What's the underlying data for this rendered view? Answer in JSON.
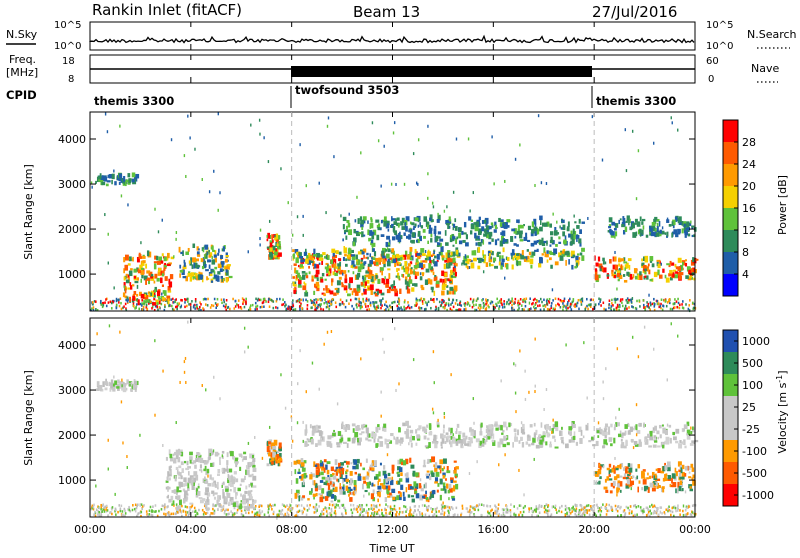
{
  "header": {
    "station": "Rankin Inlet (fitACF)",
    "beam": "Beam 13",
    "date": "27/Jul/2016"
  },
  "nsky_panel": {
    "left_label": "N.Sky",
    "left_ticks": [
      "10^5",
      "10^0"
    ],
    "right_ticks": [
      "10^5",
      "10^0"
    ],
    "right_label": "N.Search"
  },
  "freq_panel": {
    "left_label_line1": "Freq.",
    "left_label_line2": "[MHz]",
    "left_ticks": [
      "18",
      "8"
    ],
    "right_ticks": [
      "60",
      "0"
    ],
    "right_label": "Nave"
  },
  "cpid_panel": {
    "label": "CPID",
    "segments": [
      {
        "name": "themis 3300",
        "start_hour": 0,
        "end_hour": 8
      },
      {
        "name": "twofsound 3503",
        "start_hour": 8,
        "end_hour": 20
      },
      {
        "name": "themis 3300",
        "start_hour": 20,
        "end_hour": 24
      }
    ]
  },
  "chart_data": [
    {
      "type": "heatmap",
      "name": "power",
      "ylabel": "Slant Range [km]",
      "xlabel": "",
      "xlim": [
        0,
        24
      ],
      "ylim": [
        180,
        4600
      ],
      "xticks": [
        0,
        4,
        8,
        12,
        16,
        20,
        24
      ],
      "yticks": [
        1000,
        2000,
        3000,
        4000
      ],
      "colorbar": {
        "label": "Power [dB]",
        "ticks": [
          "28",
          "24",
          "20",
          "16",
          "12",
          "8",
          "4"
        ],
        "colors": [
          "#ff0000",
          "#ff5a00",
          "#ff9a00",
          "#f5d000",
          "#5fc23a",
          "#2e8b5a",
          "#1f5ea8",
          "#0000ff"
        ]
      },
      "echo_regions": [
        {
          "t0": 0.2,
          "t1": 1.8,
          "r0": 2950,
          "r1": 3150,
          "level": "weak"
        },
        {
          "t0": 1.3,
          "t1": 3.2,
          "r0": 300,
          "r1": 1400,
          "level": "strong"
        },
        {
          "t0": 3.5,
          "t1": 5.5,
          "r0": 800,
          "r1": 1600,
          "level": "medium"
        },
        {
          "t0": 7.0,
          "t1": 7.5,
          "r0": 1300,
          "r1": 1800,
          "level": "strong"
        },
        {
          "t0": 8.0,
          "t1": 14.5,
          "r0": 500,
          "r1": 1400,
          "level": "strong"
        },
        {
          "t0": 8.0,
          "t1": 19.5,
          "r0": 1100,
          "r1": 1500,
          "level": "medium"
        },
        {
          "t0": 10.0,
          "t1": 19.5,
          "r0": 1600,
          "r1": 2200,
          "level": "weak"
        },
        {
          "t0": 20.0,
          "t1": 24.0,
          "r0": 800,
          "r1": 1300,
          "level": "strong"
        },
        {
          "t0": 20.5,
          "t1": 24.0,
          "r0": 1800,
          "r1": 2200,
          "level": "weak"
        }
      ]
    },
    {
      "type": "heatmap",
      "name": "velocity",
      "ylabel": "Slant Range [km]",
      "xlabel": "Time UT",
      "xlim": [
        0,
        24
      ],
      "ylim": [
        180,
        4600
      ],
      "xticks": [
        0,
        4,
        8,
        12,
        16,
        20,
        24
      ],
      "xticklabels": [
        "00:00",
        "04:00",
        "08:00",
        "12:00",
        "16:00",
        "20:00",
        "00:00"
      ],
      "yticks": [
        1000,
        2000,
        3000,
        4000
      ],
      "colorbar": {
        "label": "Velocity [m s^-1]",
        "label_text": "Velocity",
        "label_unit_base": "[m s",
        "label_unit_exp": "-1",
        "label_unit_close": "]",
        "ticks": [
          "1000",
          "500",
          "100",
          "25",
          "-25",
          "-100",
          "-500",
          "-1000"
        ],
        "colors": [
          "#2050b0",
          "#2e8b5a",
          "#5fc23a",
          "#c8c8c8",
          "#c8c8c8",
          "#ff9a00",
          "#ff5a00",
          "#ff0000"
        ]
      },
      "echo_regions": [
        {
          "t0": 0.2,
          "t1": 1.8,
          "r0": 2950,
          "r1": 3150,
          "level": "gray"
        },
        {
          "t0": 3.0,
          "t1": 6.5,
          "r0": 300,
          "r1": 1600,
          "level": "gray"
        },
        {
          "t0": 7.0,
          "t1": 7.5,
          "r0": 1300,
          "r1": 1800,
          "level": "toward"
        },
        {
          "t0": 8.0,
          "t1": 14.5,
          "r0": 500,
          "r1": 1400,
          "level": "mixed"
        },
        {
          "t0": 8.5,
          "t1": 24.0,
          "r0": 1700,
          "r1": 2200,
          "level": "gray"
        },
        {
          "t0": 20.0,
          "t1": 24.0,
          "r0": 700,
          "r1": 1300,
          "level": "toward"
        }
      ]
    }
  ]
}
